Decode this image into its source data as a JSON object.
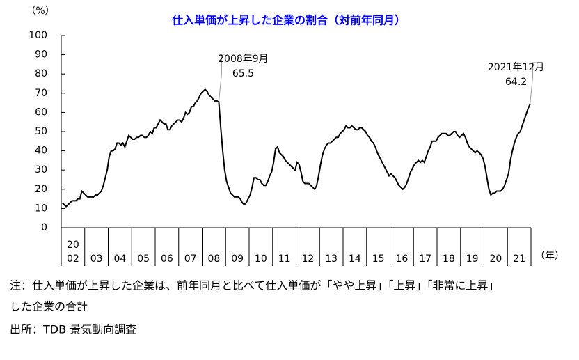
{
  "chart_data": {
    "type": "line",
    "title": "仕入単価が上昇した企業の割合（対前年同月）",
    "y_label": "（%）",
    "x_label": "（年）",
    "century_label": "20",
    "categories": [
      "02",
      "03",
      "04",
      "05",
      "06",
      "07",
      "08",
      "09",
      "10",
      "11",
      "12",
      "13",
      "14",
      "15",
      "16",
      "17",
      "18",
      "19",
      "20",
      "21"
    ],
    "series": [
      {
        "name": "仕入単価が上昇した企業の割合",
        "color": "#000000",
        "values": [
          [
            13,
            12,
            11,
            12,
            13,
            14,
            14,
            14,
            15,
            15,
            19,
            18
          ],
          [
            17,
            16,
            16,
            16,
            16,
            17,
            17,
            18,
            19,
            22,
            26,
            30
          ],
          [
            37,
            40,
            40,
            41,
            44,
            44,
            43,
            44,
            42,
            45,
            48,
            47
          ],
          [
            46,
            46,
            47,
            47,
            48,
            48,
            47,
            47,
            48,
            50,
            49,
            52
          ],
          [
            52,
            54,
            56,
            55,
            54,
            54,
            51,
            51,
            53,
            54,
            55,
            56
          ],
          [
            56,
            55,
            57,
            60,
            59,
            60,
            63,
            63,
            65,
            66,
            68,
            70
          ],
          [
            71,
            72,
            71,
            69,
            68,
            67,
            66,
            66,
            65.5,
            52,
            40,
            30
          ],
          [
            24,
            21,
            18,
            17,
            16,
            16,
            16,
            15,
            13,
            12,
            13,
            15
          ],
          [
            17,
            21,
            26,
            26,
            25,
            25,
            23,
            22,
            22,
            24,
            27,
            29
          ],
          [
            34,
            41,
            42,
            39,
            38,
            37,
            35,
            34,
            33,
            32,
            31,
            30
          ],
          [
            34,
            33,
            29,
            24,
            23,
            23,
            23,
            22,
            21,
            20,
            22,
            27
          ],
          [
            33,
            38,
            41,
            43,
            44,
            44,
            45,
            46,
            47,
            47,
            49,
            50
          ],
          [
            51,
            53,
            52,
            52,
            53,
            52,
            51,
            51,
            52,
            52,
            51,
            50
          ],
          [
            48,
            47,
            45,
            44,
            42,
            39,
            37,
            35,
            33,
            31,
            29,
            27
          ],
          [
            28,
            27,
            26,
            24,
            22,
            21,
            20,
            21,
            23,
            26,
            29,
            31
          ],
          [
            33,
            34,
            35,
            34,
            35,
            34,
            37,
            40,
            42,
            45,
            45,
            45
          ],
          [
            47,
            48,
            49,
            49,
            49,
            48,
            48,
            49,
            50,
            50,
            48,
            47
          ],
          [
            48,
            49,
            47,
            44,
            42,
            41,
            40,
            39,
            40,
            39,
            38,
            36
          ],
          [
            32,
            26,
            20,
            17,
            18,
            18,
            19,
            19,
            19,
            20,
            22,
            25
          ],
          [
            28,
            35,
            40,
            44,
            47,
            49,
            50,
            53,
            56,
            59,
            62,
            64.2
          ]
        ]
      }
    ],
    "ylim": [
      0,
      100
    ],
    "yticks": [
      0,
      10,
      20,
      30,
      40,
      50,
      60,
      70,
      80,
      90,
      100
    ],
    "annotations": [
      {
        "date": "2008年9月",
        "value": 65.5
      },
      {
        "date": "2021年12月",
        "value": 64.2
      }
    ]
  },
  "notes": [
    "注：仕入単価が上昇した企業は、前年同月と比べて仕入単価が「やや上昇」「上昇」「非常に上昇」",
    "した企業の合計",
    "出所：TDB 景気動向調査"
  ]
}
